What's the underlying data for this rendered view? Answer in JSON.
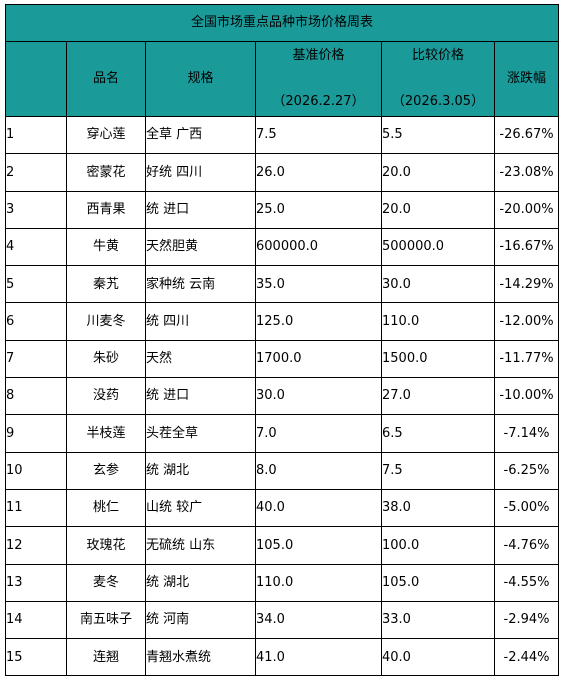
{
  "title": "全国市场重点品种市场价格周表",
  "headers": {
    "name": "品名",
    "spec": "规格",
    "base_label": "基准价格",
    "base_date": "（2026.2.27）",
    "cmp_label": "比较价格",
    "cmp_date": "（2026.3.05）",
    "change": "涨跌幅"
  },
  "colors": {
    "header_bg": "#1b9a9a",
    "change_text": "#00a651"
  },
  "rows": [
    {
      "no": "1",
      "name": "穿心莲",
      "spec": "全草 广西",
      "base": "7.5",
      "cmp": "5.5",
      "change": "-26.67%"
    },
    {
      "no": "2",
      "name": "密蒙花",
      "spec": "好统 四川",
      "base": "26.0",
      "cmp": "20.0",
      "change": "-23.08%"
    },
    {
      "no": "3",
      "name": "西青果",
      "spec": "统 进口",
      "base": "25.0",
      "cmp": "20.0",
      "change": "-20.00%"
    },
    {
      "no": "4",
      "name": "牛黄",
      "spec": "天然胆黄",
      "base": "600000.0",
      "cmp": "500000.0",
      "change": "-16.67%"
    },
    {
      "no": "5",
      "name": "秦艽",
      "spec": "家种统 云南",
      "base": "35.0",
      "cmp": "30.0",
      "change": "-14.29%"
    },
    {
      "no": "6",
      "name": "川麦冬",
      "spec": "统 四川",
      "base": "125.0",
      "cmp": "110.0",
      "change": "-12.00%"
    },
    {
      "no": "7",
      "name": "朱砂",
      "spec": "天然",
      "base": "1700.0",
      "cmp": "1500.0",
      "change": "-11.77%"
    },
    {
      "no": "8",
      "name": "没药",
      "spec": "统 进口",
      "base": "30.0",
      "cmp": "27.0",
      "change": "-10.00%"
    },
    {
      "no": "9",
      "name": "半枝莲",
      "spec": "头茬全草",
      "base": "7.0",
      "cmp": "6.5",
      "change": "-7.14%"
    },
    {
      "no": "10",
      "name": "玄参",
      "spec": "统 湖北",
      "base": "8.0",
      "cmp": "7.5",
      "change": "-6.25%"
    },
    {
      "no": "11",
      "name": "桃仁",
      "spec": "山统 较广",
      "base": "40.0",
      "cmp": "38.0",
      "change": "-5.00%"
    },
    {
      "no": "12",
      "name": "玫瑰花",
      "spec": "无硫统 山东",
      "base": "105.0",
      "cmp": "100.0",
      "change": "-4.76%"
    },
    {
      "no": "13",
      "name": "麦冬",
      "spec": "统 湖北",
      "base": "110.0",
      "cmp": "105.0",
      "change": "-4.55%"
    },
    {
      "no": "14",
      "name": "南五味子",
      "spec": "统 河南",
      "base": "34.0",
      "cmp": "33.0",
      "change": "-2.94%"
    },
    {
      "no": "15",
      "name": "连翘",
      "spec": "青翘水煮统",
      "base": "41.0",
      "cmp": "40.0",
      "change": "-2.44%"
    }
  ]
}
